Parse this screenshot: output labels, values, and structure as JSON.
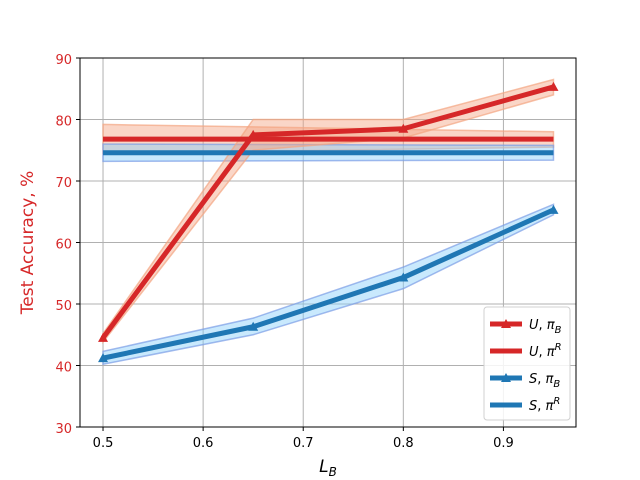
{
  "chart_data": {
    "type": "line",
    "title": "",
    "xlabel": "L",
    "xlabel_sub": "B",
    "ylabel": "Test  Accuracy, %",
    "xlim": [
      0.477,
      0.9725
    ],
    "ylim": [
      30,
      90
    ],
    "xticks": [
      "0.5",
      "0.6",
      "0.7",
      "0.8",
      "0.9"
    ],
    "yticks": [
      "30",
      "40",
      "50",
      "60",
      "70",
      "80",
      "90"
    ],
    "grid": true,
    "legend_position": "lower-right",
    "colors": {
      "red": "#d62728",
      "red_band": "#f4a582",
      "blue": "#1f77b4",
      "blue_band": "#87cefa",
      "blue_band_edge": "#7b9ce6",
      "ylabel_color": "#d62728"
    },
    "series": [
      {
        "name": "U, π_B",
        "legend_main": "U",
        "legend_sym": "π",
        "legend_script": "B",
        "legend_script_type": "sub",
        "color": "red",
        "marker": "triangle",
        "x": [
          0.5,
          0.65,
          0.8,
          0.95
        ],
        "y": [
          44.5,
          77.5,
          78.5,
          85.3
        ],
        "y_low": [
          43.8,
          75.0,
          77.0,
          84.0
        ],
        "y_high": [
          45.2,
          80.0,
          80.0,
          86.5
        ]
      },
      {
        "name": "U, π^R",
        "legend_main": "U",
        "legend_sym": "π",
        "legend_script": "R",
        "legend_script_type": "sup",
        "color": "red",
        "marker": "none",
        "x": [
          0.5,
          0.95
        ],
        "y": [
          76.8,
          76.8
        ],
        "y_low": [
          74.5,
          75.5
        ],
        "y_high": [
          79.2,
          78.0
        ]
      },
      {
        "name": "S, π_B",
        "legend_main": "S",
        "legend_sym": "π",
        "legend_script": "B",
        "legend_script_type": "sub",
        "color": "blue",
        "marker": "triangle",
        "x": [
          0.5,
          0.65,
          0.8,
          0.95
        ],
        "y": [
          41.2,
          46.3,
          54.3,
          65.3
        ],
        "y_low": [
          40.2,
          45.0,
          52.5,
          64.5
        ],
        "y_high": [
          42.3,
          47.7,
          56.0,
          66.2
        ]
      },
      {
        "name": "S, π^R",
        "legend_main": "S",
        "legend_sym": "π",
        "legend_script": "R",
        "legend_script_type": "sup",
        "color": "blue",
        "marker": "none",
        "x": [
          0.5,
          0.95
        ],
        "y": [
          74.6,
          74.6
        ],
        "y_low": [
          73.2,
          73.4
        ],
        "y_high": [
          76.0,
          75.8
        ]
      }
    ]
  }
}
